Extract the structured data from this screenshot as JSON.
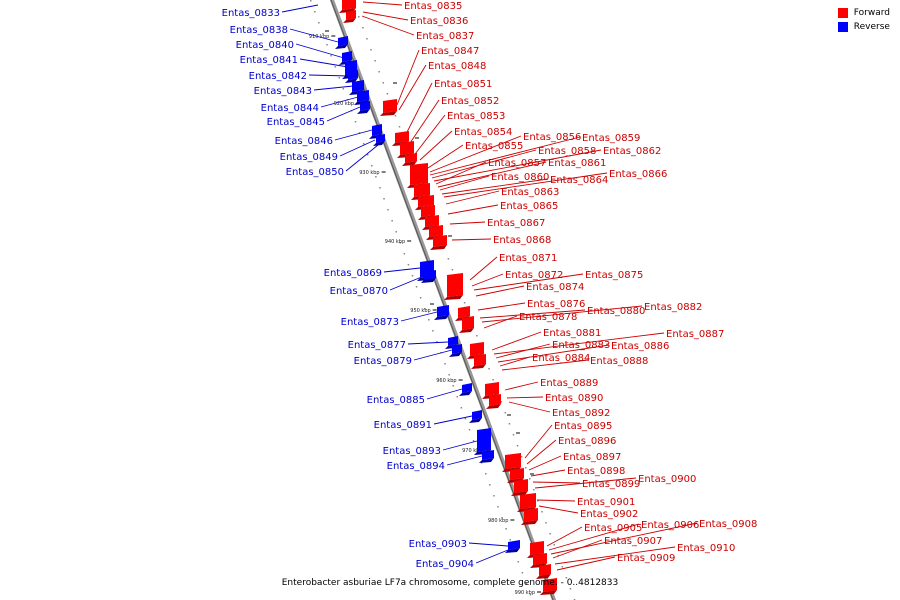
{
  "legend": {
    "forward_label": "Forward",
    "reverse_label": "Reverse",
    "forward_color": "#ff0000",
    "reverse_color": "#0000ff"
  },
  "caption": "Enterobacter asburiae LF7a chromosome, complete genome. - 0..4812833",
  "ticks": [
    "910 kbp",
    "920 kbp",
    "930 kbp",
    "940 kbp",
    "950 kbp",
    "960 kbp",
    "970 kbp",
    "980 kbp",
    "990 kbp"
  ],
  "reverse_genes": [
    "Entas_0833",
    "Entas_0838",
    "Entas_0840",
    "Entas_0841",
    "Entas_0842",
    "Entas_0843",
    "Entas_0844",
    "Entas_0845",
    "Entas_0846",
    "Entas_0849",
    "Entas_0850",
    "Entas_0869",
    "Entas_0870",
    "Entas_0873",
    "Entas_0877",
    "Entas_0879",
    "Entas_0885",
    "Entas_0891",
    "Entas_0893",
    "Entas_0894",
    "Entas_0903",
    "Entas_0904"
  ],
  "forward_genes": [
    "Entas_0835",
    "Entas_0836",
    "Entas_0837",
    "Entas_0847",
    "Entas_0848",
    "Entas_0851",
    "Entas_0852",
    "Entas_0853",
    "Entas_0854",
    "Entas_0855",
    "Entas_0856",
    "Entas_0859",
    "Entas_0858",
    "Entas_0862",
    "Entas_0857",
    "Entas_0861",
    "Entas_0860",
    "Entas_0864",
    "Entas_0866",
    "Entas_0863",
    "Entas_0865",
    "Entas_0867",
    "Entas_0868",
    "Entas_0871",
    "Entas_0872",
    "Entas_0875",
    "Entas_0874",
    "Entas_0876",
    "Entas_0880",
    "Entas_0882",
    "Entas_0878",
    "Entas_0881",
    "Entas_0887",
    "Entas_0883",
    "Entas_0886",
    "Entas_0884",
    "Entas_0888",
    "Entas_0889",
    "Entas_0890",
    "Entas_0892",
    "Entas_0895",
    "Entas_0896",
    "Entas_0897",
    "Entas_0898",
    "Entas_0899",
    "Entas_0900",
    "Entas_0901",
    "Entas_0902",
    "Entas_0906",
    "Entas_0908",
    "Entas_0905",
    "Entas_0907",
    "Entas_0910",
    "Entas_0909"
  ]
}
